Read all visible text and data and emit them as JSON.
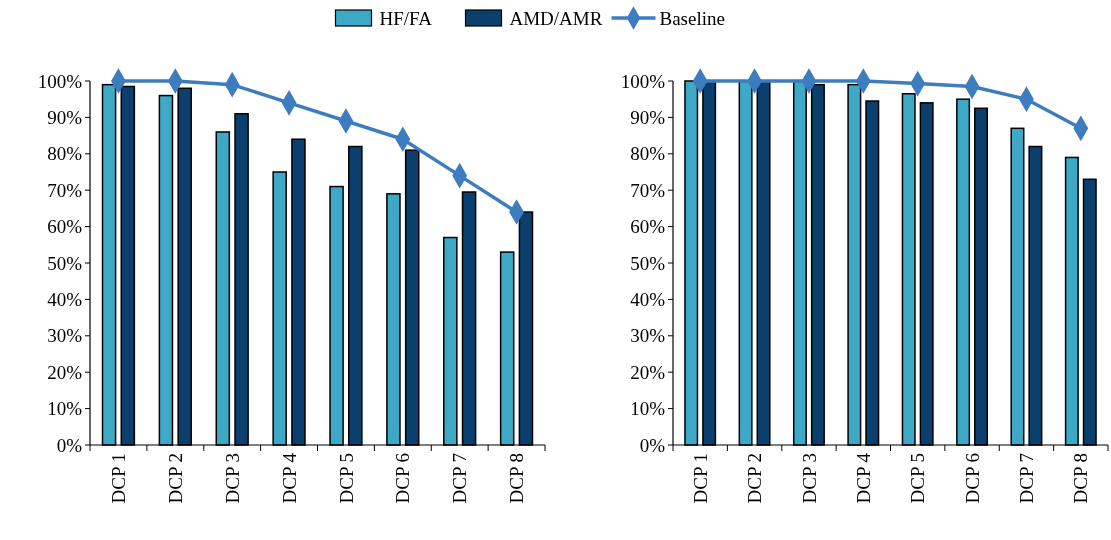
{
  "chart_data": [
    {
      "type": "bar",
      "categories": [
        "DCP 1",
        "DCP 2",
        "DCP 3",
        "DCP 4",
        "DCP 5",
        "DCP 6",
        "DCP 7",
        "DCP 8"
      ],
      "ylim": [
        0,
        100
      ],
      "yticks": [
        {
          "value": 0,
          "label": "0%"
        },
        {
          "value": 10,
          "label": "10%"
        },
        {
          "value": 20,
          "label": "20%"
        },
        {
          "value": 30,
          "label": "30%"
        },
        {
          "value": 40,
          "label": "40%"
        },
        {
          "value": 50,
          "label": "50%"
        },
        {
          "value": 60,
          "label": "60%"
        },
        {
          "value": 70,
          "label": "70%"
        },
        {
          "value": 80,
          "label": "80%"
        },
        {
          "value": 90,
          "label": "90%"
        },
        {
          "value": 100,
          "label": "100%"
        }
      ],
      "legend": "top",
      "series": [
        {
          "name": "HF/FA",
          "color": "#3ea9c6",
          "values": [
            99,
            96,
            86,
            75,
            71,
            69,
            57,
            53
          ]
        },
        {
          "name": "AMD/AMR",
          "color": "#0b3f6e",
          "values": [
            98.5,
            98,
            91,
            84,
            82,
            81,
            69.5,
            64
          ]
        },
        {
          "name": "Baseline",
          "type": "line",
          "color": "#3e7cc0",
          "marker": "diamond",
          "values": [
            100,
            100,
            99,
            94,
            89,
            84,
            74,
            64
          ]
        }
      ]
    },
    {
      "type": "bar",
      "categories": [
        "DCP 1",
        "DCP 2",
        "DCP 3",
        "DCP 4",
        "DCP 5",
        "DCP 6",
        "DCP 7",
        "DCP 8"
      ],
      "ylim": [
        0,
        100
      ],
      "yticks": [
        {
          "value": 0,
          "label": "0%"
        },
        {
          "value": 10,
          "label": "10%"
        },
        {
          "value": 20,
          "label": "20%"
        },
        {
          "value": 30,
          "label": "30%"
        },
        {
          "value": 40,
          "label": "40%"
        },
        {
          "value": 50,
          "label": "50%"
        },
        {
          "value": 60,
          "label": "60%"
        },
        {
          "value": 70,
          "label": "70%"
        },
        {
          "value": 80,
          "label": "80%"
        },
        {
          "value": 90,
          "label": "90%"
        },
        {
          "value": 100,
          "label": "100%"
        }
      ],
      "series": [
        {
          "color": "#3ea9c6",
          "values": [
            100,
            100,
            100,
            99,
            96.5,
            95,
            87,
            79
          ]
        },
        {
          "color": "#0b3f6e",
          "values": [
            100,
            100,
            99,
            94.5,
            94,
            92.5,
            82,
            73
          ]
        },
        {
          "type": "line",
          "color": "#3e7cc0",
          "marker": "diamond",
          "values": [
            100,
            100,
            100,
            100,
            99.3,
            98.5,
            95,
            87
          ]
        }
      ]
    }
  ]
}
